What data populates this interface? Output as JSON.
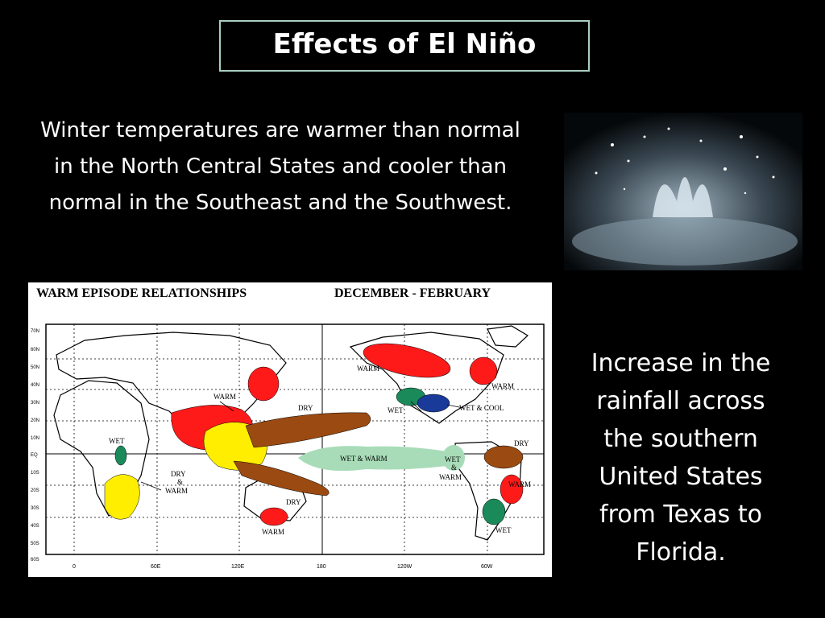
{
  "slide": {
    "title": "Effects of El Niño",
    "left_text": "Winter temperatures are warmer than normal in the North Central States and cooler than normal in the Southeast and the Southwest.",
    "right_text": "Increase in the rainfall across the southern United States from Texas to Florida."
  },
  "map": {
    "title_left": "WARM EPISODE RELATIONSHIPS",
    "title_right": "DECEMBER - FEBRUARY",
    "lat_labels": [
      "70N",
      "60N",
      "50N",
      "40N",
      "30N",
      "20N",
      "10N",
      "EQ",
      "10S",
      "20S",
      "30S",
      "40S",
      "50S",
      "60S"
    ],
    "lon_labels": [
      "0",
      "60E",
      "120E",
      "180",
      "120W",
      "60W"
    ],
    "region_labels": {
      "warm_n_pacific": "WARM",
      "warm_asia": "WARM",
      "warm_ne_america": "WARM",
      "dry_w_pacific": "DRY",
      "wet_s_us": "WET",
      "wet_cool_se_us": "WET & COOL",
      "wet": "WET",
      "wet_warm_pacific": "WET & WARM",
      "wet_warm_peru_1": "WET",
      "wet_warm_peru_2": "&",
      "wet_warm_peru_3": "WARM",
      "dry_n_south_america": "DRY",
      "dry_warm_s_africa_1": "DRY",
      "dry_warm_s_africa_2": "&",
      "dry_warm_s_africa_3": "WARM",
      "dry_australia": "DRY",
      "warm_se_australia": "WARM",
      "warm_se_south_america": "WARM",
      "wet_s_south_america": "WET"
    },
    "legend_colors": {
      "warm": "#ff1a1a",
      "dry": "#9b4a12",
      "wet": "#1a8a5a",
      "wet_light": "#a8dcb8",
      "dry_warm": "#ffee00",
      "wet_cool": "#1a3a9a"
    }
  }
}
